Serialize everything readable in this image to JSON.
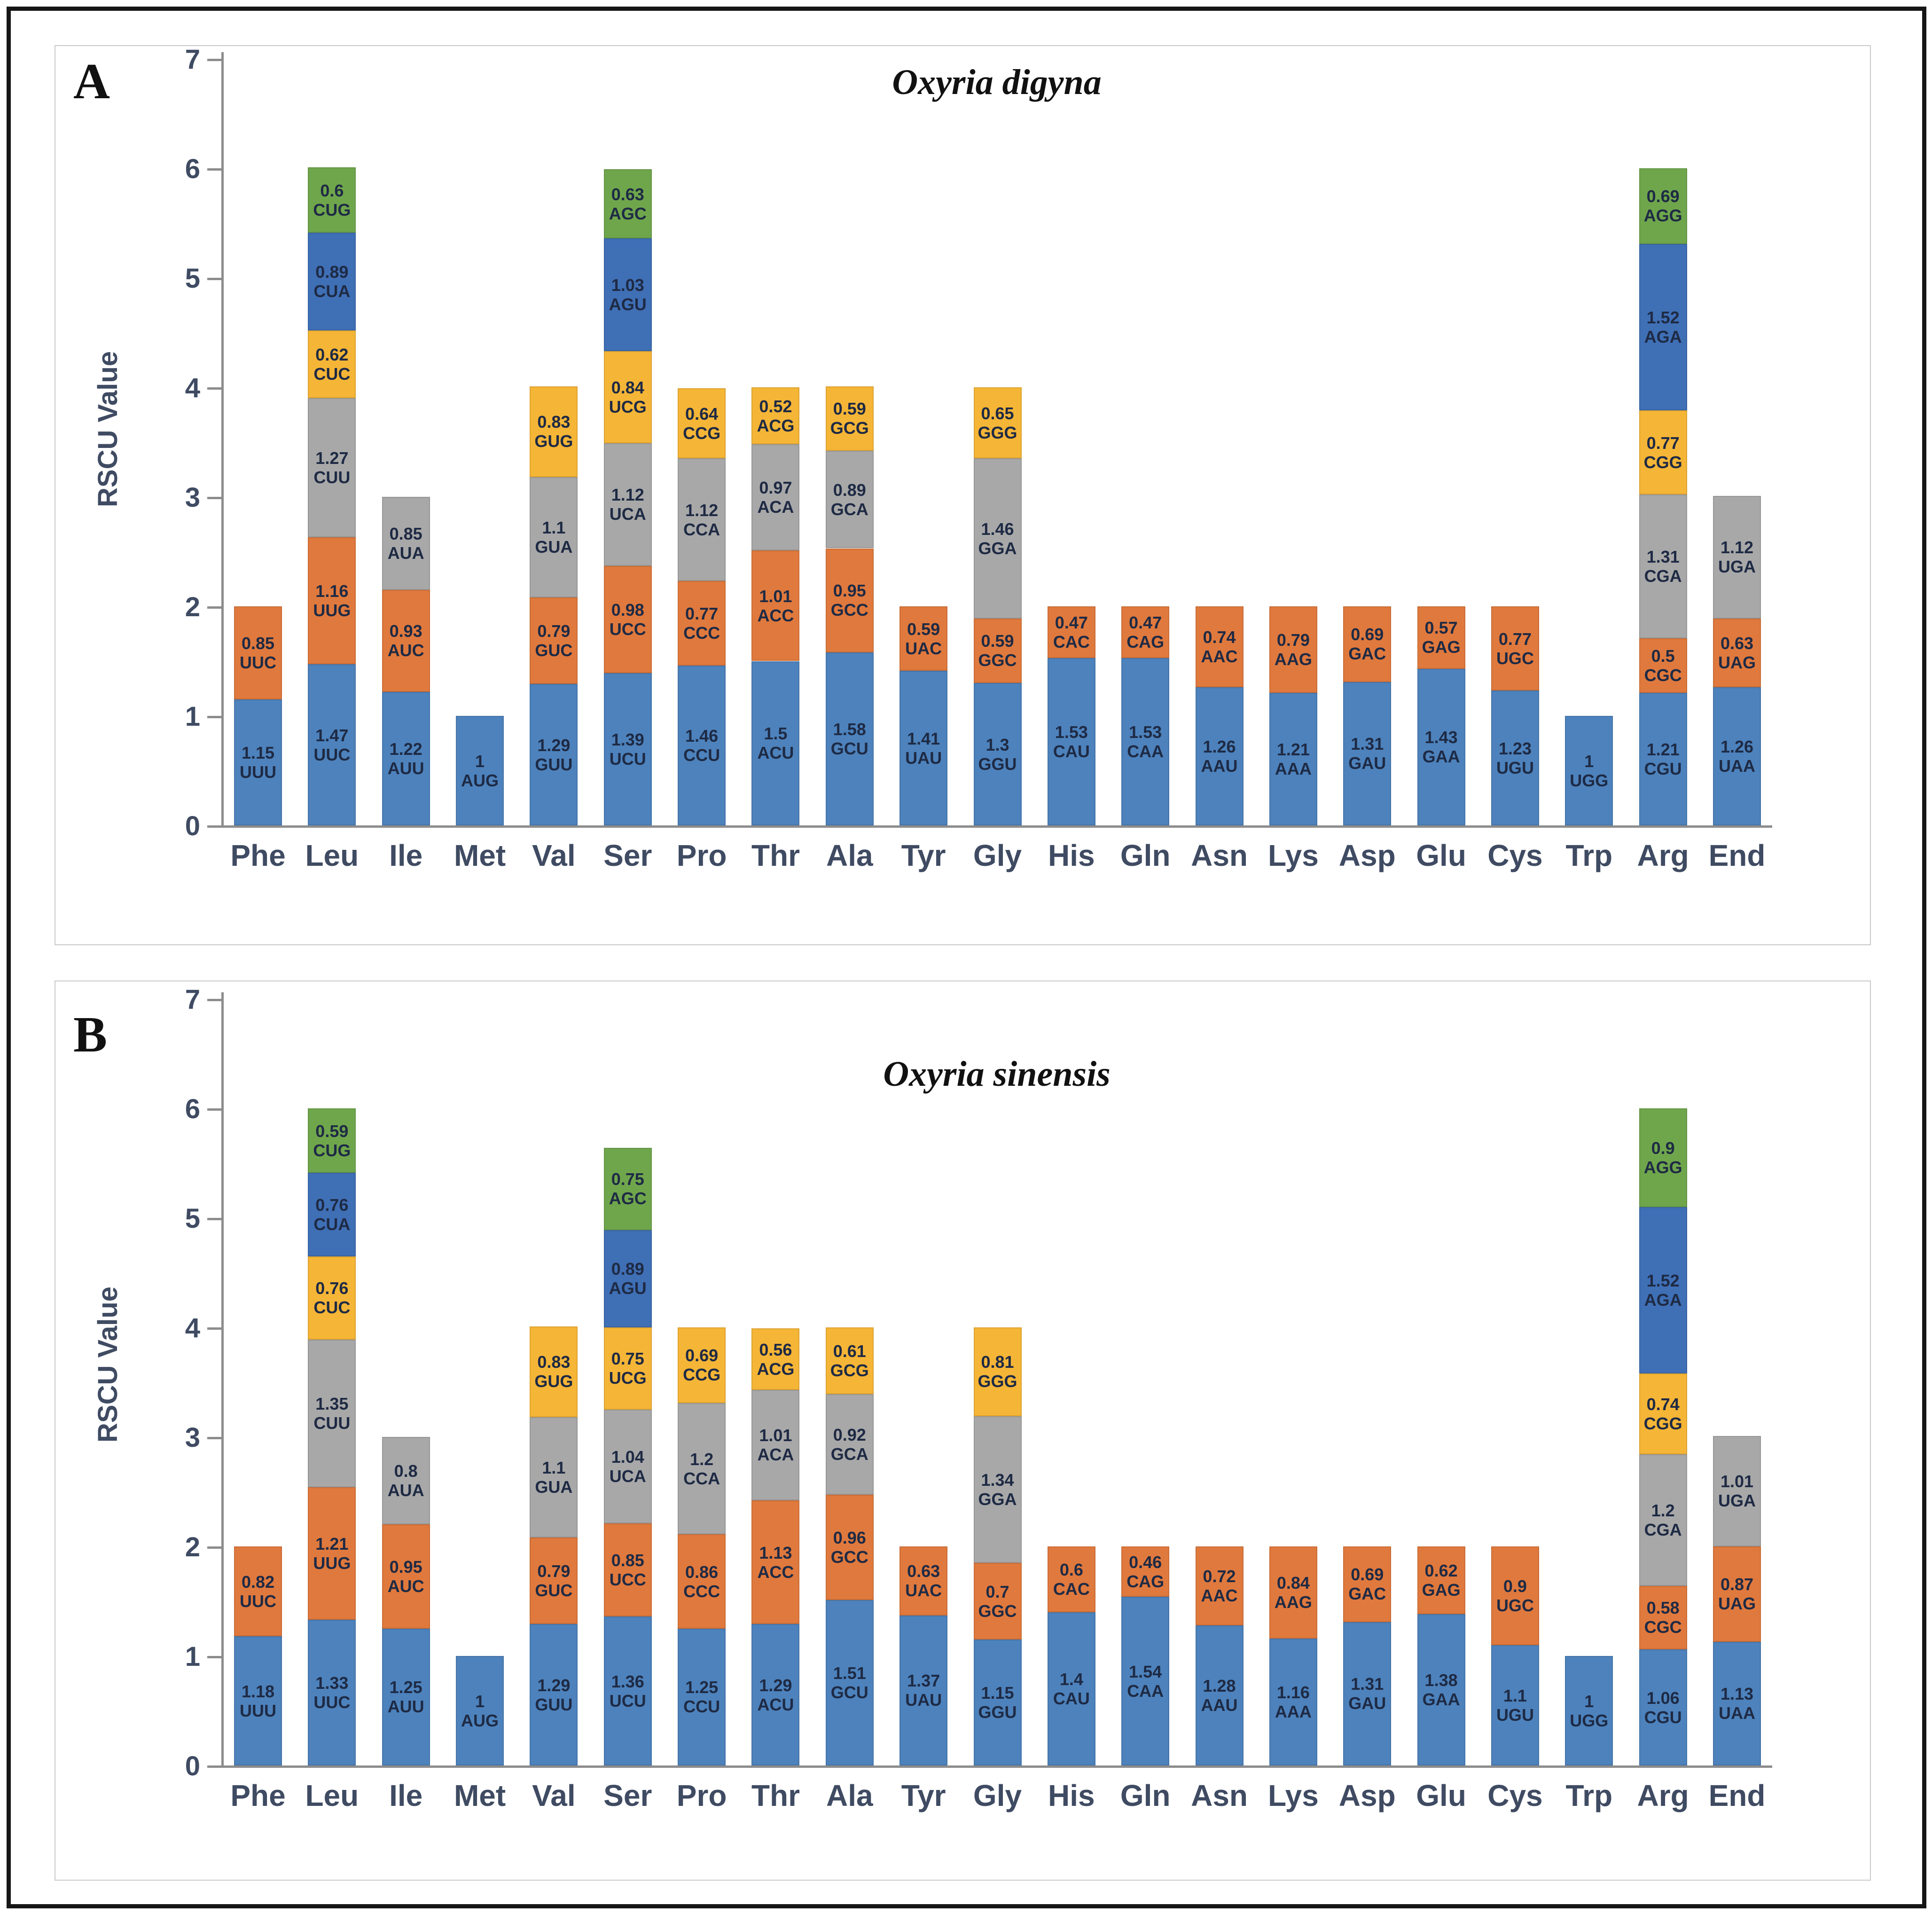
{
  "style": {
    "palette": [
      "#4D82BC",
      "#E0793D",
      "#A8A8A8",
      "#F5B536",
      "#3F6FB5",
      "#6FA64C"
    ],
    "axis_text_color": "#3F4B62",
    "axis_line_color": "#8c8c8c",
    "segment_label_color": "#1E2A44",
    "frame_border_color": "#161616",
    "panel_border_color": "#c9c9c9"
  },
  "chart_data": [
    {
      "type": "bar",
      "stacked": true,
      "panel_letter": "A",
      "title": "Oxyria digyna",
      "xlabel": "",
      "ylabel": "RSCU Value",
      "ylim": [
        0,
        7
      ],
      "y_ticks": [
        0,
        1,
        2,
        3,
        4,
        5,
        6,
        7
      ],
      "grid": false,
      "legend": false,
      "categories": [
        {
          "name": "Phe",
          "segments": [
            {
              "codon": "UUU",
              "value": 1.15
            },
            {
              "codon": "UUC",
              "value": 0.85
            }
          ]
        },
        {
          "name": "Leu",
          "segments": [
            {
              "codon": "UUC",
              "value": 1.47
            },
            {
              "codon": "UUG",
              "value": 1.16
            },
            {
              "codon": "CUU",
              "value": 1.27
            },
            {
              "codon": "CUC",
              "value": 0.62
            },
            {
              "codon": "CUA",
              "value": 0.89
            },
            {
              "codon": "CUG",
              "value": 0.6
            }
          ]
        },
        {
          "name": "Ile",
          "segments": [
            {
              "codon": "AUU",
              "value": 1.22
            },
            {
              "codon": "AUC",
              "value": 0.93
            },
            {
              "codon": "AUA",
              "value": 0.85
            }
          ]
        },
        {
          "name": "Met",
          "segments": [
            {
              "codon": "AUG",
              "value": 1
            }
          ]
        },
        {
          "name": "Val",
          "segments": [
            {
              "codon": "GUU",
              "value": 1.29
            },
            {
              "codon": "GUC",
              "value": 0.79
            },
            {
              "codon": "GUA",
              "value": 1.1
            },
            {
              "codon": "GUG",
              "value": 0.83
            }
          ]
        },
        {
          "name": "Ser",
          "segments": [
            {
              "codon": "UCU",
              "value": 1.39
            },
            {
              "codon": "UCC",
              "value": 0.98
            },
            {
              "codon": "UCA",
              "value": 1.12
            },
            {
              "codon": "UCG",
              "value": 0.84
            },
            {
              "codon": "AGU",
              "value": 1.03
            },
            {
              "codon": "AGC",
              "value": 0.63
            }
          ]
        },
        {
          "name": "Pro",
          "segments": [
            {
              "codon": "CCU",
              "value": 1.46
            },
            {
              "codon": "CCC",
              "value": 0.77
            },
            {
              "codon": "CCA",
              "value": 1.12
            },
            {
              "codon": "CCG",
              "value": 0.64
            }
          ]
        },
        {
          "name": "Thr",
          "segments": [
            {
              "codon": "ACU",
              "value": 1.5
            },
            {
              "codon": "ACC",
              "value": 1.01
            },
            {
              "codon": "ACA",
              "value": 0.97
            },
            {
              "codon": "ACG",
              "value": 0.52
            }
          ]
        },
        {
          "name": "Ala",
          "segments": [
            {
              "codon": "GCU",
              "value": 1.58
            },
            {
              "codon": "GCC",
              "value": 0.95
            },
            {
              "codon": "GCA",
              "value": 0.89
            },
            {
              "codon": "GCG",
              "value": 0.59
            }
          ]
        },
        {
          "name": "Tyr",
          "segments": [
            {
              "codon": "UAU",
              "value": 1.41
            },
            {
              "codon": "UAC",
              "value": 0.59
            }
          ]
        },
        {
          "name": "Gly",
          "segments": [
            {
              "codon": "GGU",
              "value": 1.3
            },
            {
              "codon": "GGC",
              "value": 0.59
            },
            {
              "codon": "GGA",
              "value": 1.46
            },
            {
              "codon": "GGG",
              "value": 0.65
            }
          ]
        },
        {
          "name": "His",
          "segments": [
            {
              "codon": "CAU",
              "value": 1.53
            },
            {
              "codon": "CAC",
              "value": 0.47
            }
          ]
        },
        {
          "name": "Gln",
          "segments": [
            {
              "codon": "CAA",
              "value": 1.53
            },
            {
              "codon": "CAG",
              "value": 0.47
            }
          ]
        },
        {
          "name": "Asn",
          "segments": [
            {
              "codon": "AAU",
              "value": 1.26
            },
            {
              "codon": "AAC",
              "value": 0.74
            }
          ]
        },
        {
          "name": "Lys",
          "segments": [
            {
              "codon": "AAA",
              "value": 1.21
            },
            {
              "codon": "AAG",
              "value": 0.79
            }
          ]
        },
        {
          "name": "Asp",
          "segments": [
            {
              "codon": "GAU",
              "value": 1.31
            },
            {
              "codon": "GAC",
              "value": 0.69
            }
          ]
        },
        {
          "name": "Glu",
          "segments": [
            {
              "codon": "GAA",
              "value": 1.43
            },
            {
              "codon": "GAG",
              "value": 0.57
            }
          ]
        },
        {
          "name": "Cys",
          "segments": [
            {
              "codon": "UGU",
              "value": 1.23
            },
            {
              "codon": "UGC",
              "value": 0.77
            }
          ]
        },
        {
          "name": "Trp",
          "segments": [
            {
              "codon": "UGG",
              "value": 1
            }
          ]
        },
        {
          "name": "Arg",
          "segments": [
            {
              "codon": "CGU",
              "value": 1.21
            },
            {
              "codon": "CGC",
              "value": 0.5
            },
            {
              "codon": "CGA",
              "value": 1.31
            },
            {
              "codon": "CGG",
              "value": 0.77
            },
            {
              "codon": "AGA",
              "value": 1.52
            },
            {
              "codon": "AGG",
              "value": 0.69
            }
          ]
        },
        {
          "name": "End",
          "segments": [
            {
              "codon": "UAA",
              "value": 1.26
            },
            {
              "codon": "UAG",
              "value": 0.63
            },
            {
              "codon": "UGA",
              "value": 1.12
            }
          ]
        }
      ]
    },
    {
      "type": "bar",
      "stacked": true,
      "panel_letter": "B",
      "title": "Oxyria sinensis",
      "xlabel": "",
      "ylabel": "RSCU Value",
      "ylim": [
        0,
        7
      ],
      "y_ticks": [
        0,
        1,
        2,
        3,
        4,
        5,
        6,
        7
      ],
      "grid": false,
      "legend": false,
      "categories": [
        {
          "name": "Phe",
          "segments": [
            {
              "codon": "UUU",
              "value": 1.18
            },
            {
              "codon": "UUC",
              "value": 0.82
            }
          ]
        },
        {
          "name": "Leu",
          "segments": [
            {
              "codon": "UUC",
              "value": 1.33
            },
            {
              "codon": "UUG",
              "value": 1.21
            },
            {
              "codon": "CUU",
              "value": 1.35
            },
            {
              "codon": "CUC",
              "value": 0.76
            },
            {
              "codon": "CUA",
              "value": 0.76
            },
            {
              "codon": "CUG",
              "value": 0.59
            }
          ]
        },
        {
          "name": "Ile",
          "segments": [
            {
              "codon": "AUU",
              "value": 1.25
            },
            {
              "codon": "AUC",
              "value": 0.95
            },
            {
              "codon": "AUA",
              "value": 0.8
            }
          ]
        },
        {
          "name": "Met",
          "segments": [
            {
              "codon": "AUG",
              "value": 1
            }
          ]
        },
        {
          "name": "Val",
          "segments": [
            {
              "codon": "GUU",
              "value": 1.29
            },
            {
              "codon": "GUC",
              "value": 0.79
            },
            {
              "codon": "GUA",
              "value": 1.1
            },
            {
              "codon": "GUG",
              "value": 0.83
            }
          ]
        },
        {
          "name": "Ser",
          "segments": [
            {
              "codon": "UCU",
              "value": 1.36
            },
            {
              "codon": "UCC",
              "value": 0.85
            },
            {
              "codon": "UCA",
              "value": 1.04
            },
            {
              "codon": "UCG",
              "value": 0.75
            },
            {
              "codon": "AGU",
              "value": 0.89
            },
            {
              "codon": "AGC",
              "value": 0.75
            }
          ]
        },
        {
          "name": "Pro",
          "segments": [
            {
              "codon": "CCU",
              "value": 1.25
            },
            {
              "codon": "CCC",
              "value": 0.86
            },
            {
              "codon": "CCA",
              "value": 1.2
            },
            {
              "codon": "CCG",
              "value": 0.69
            }
          ]
        },
        {
          "name": "Thr",
          "segments": [
            {
              "codon": "ACU",
              "value": 1.29
            },
            {
              "codon": "ACC",
              "value": 1.13
            },
            {
              "codon": "ACA",
              "value": 1.01
            },
            {
              "codon": "ACG",
              "value": 0.56
            }
          ]
        },
        {
          "name": "Ala",
          "segments": [
            {
              "codon": "GCU",
              "value": 1.51
            },
            {
              "codon": "GCC",
              "value": 0.96
            },
            {
              "codon": "GCA",
              "value": 0.92
            },
            {
              "codon": "GCG",
              "value": 0.61
            }
          ]
        },
        {
          "name": "Tyr",
          "segments": [
            {
              "codon": "UAU",
              "value": 1.37
            },
            {
              "codon": "UAC",
              "value": 0.63
            }
          ]
        },
        {
          "name": "Gly",
          "segments": [
            {
              "codon": "GGU",
              "value": 1.15
            },
            {
              "codon": "GGC",
              "value": 0.7
            },
            {
              "codon": "GGA",
              "value": 1.34
            },
            {
              "codon": "GGG",
              "value": 0.81
            }
          ]
        },
        {
          "name": "His",
          "segments": [
            {
              "codon": "CAU",
              "value": 1.4
            },
            {
              "codon": "CAC",
              "value": 0.6
            }
          ]
        },
        {
          "name": "Gln",
          "segments": [
            {
              "codon": "CAA",
              "value": 1.54
            },
            {
              "codon": "CAG",
              "value": 0.46
            }
          ]
        },
        {
          "name": "Asn",
          "segments": [
            {
              "codon": "AAU",
              "value": 1.28
            },
            {
              "codon": "AAC",
              "value": 0.72
            }
          ]
        },
        {
          "name": "Lys",
          "segments": [
            {
              "codon": "AAA",
              "value": 1.16
            },
            {
              "codon": "AAG",
              "value": 0.84
            }
          ]
        },
        {
          "name": "Asp",
          "segments": [
            {
              "codon": "GAU",
              "value": 1.31
            },
            {
              "codon": "GAC",
              "value": 0.69
            }
          ]
        },
        {
          "name": "Glu",
          "segments": [
            {
              "codon": "GAA",
              "value": 1.38
            },
            {
              "codon": "GAG",
              "value": 0.62
            }
          ]
        },
        {
          "name": "Cys",
          "segments": [
            {
              "codon": "UGU",
              "value": 1.1
            },
            {
              "codon": "UGC",
              "value": 0.9
            }
          ]
        },
        {
          "name": "Trp",
          "segments": [
            {
              "codon": "UGG",
              "value": 1
            }
          ]
        },
        {
          "name": "Arg",
          "segments": [
            {
              "codon": "CGU",
              "value": 1.06
            },
            {
              "codon": "CGC",
              "value": 0.58
            },
            {
              "codon": "CGA",
              "value": 1.2
            },
            {
              "codon": "CGG",
              "value": 0.74
            },
            {
              "codon": "AGA",
              "value": 1.52
            },
            {
              "codon": "AGG",
              "value": 0.9
            }
          ]
        },
        {
          "name": "End",
          "segments": [
            {
              "codon": "UAA",
              "value": 1.13
            },
            {
              "codon": "UAG",
              "value": 0.87
            },
            {
              "codon": "UGA",
              "value": 1.01
            }
          ]
        }
      ]
    }
  ]
}
